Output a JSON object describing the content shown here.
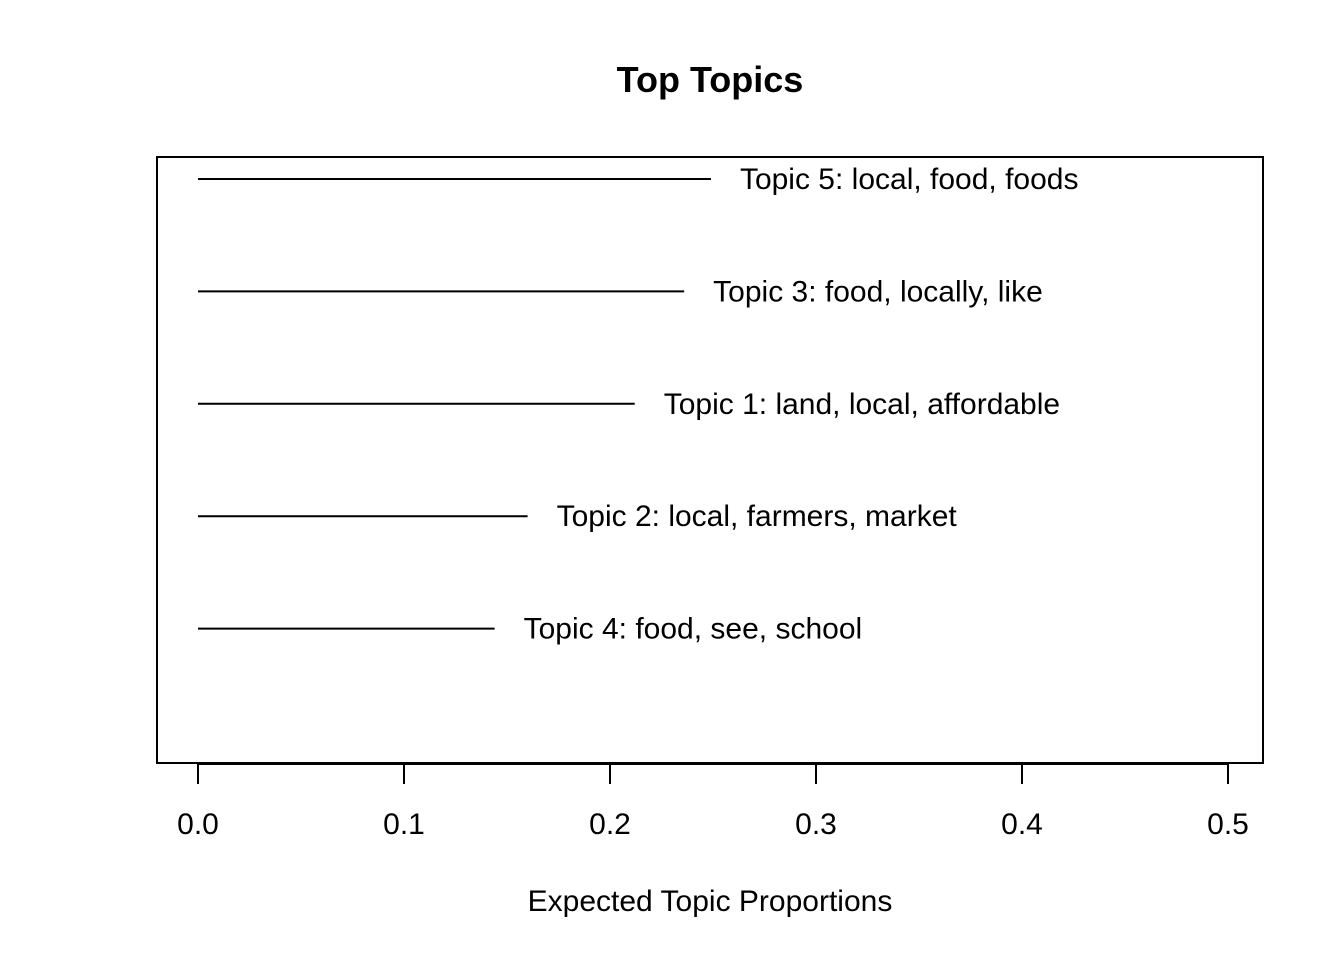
{
  "chart_data": {
    "type": "bar",
    "title": "Top Topics",
    "xlabel": "Expected Topic Proportions",
    "ylabel": "",
    "xlim": [
      0.0,
      0.5
    ],
    "xticks": [
      0.0,
      0.1,
      0.2,
      0.3,
      0.4,
      0.5
    ],
    "xtick_labels": [
      "0.0",
      "0.1",
      "0.2",
      "0.3",
      "0.4",
      "0.5"
    ],
    "orientation": "horizontal",
    "categories": [
      "Topic 5: local, food, foods",
      "Topic 3: food, locally, like",
      "Topic 1: land, local, affordable",
      "Topic 2: local, farmers, market",
      "Topic 4: food, see, school"
    ],
    "values": [
      0.249,
      0.236,
      0.212,
      0.16,
      0.144
    ],
    "grid": false,
    "legend": "none",
    "line_color": "#000000"
  }
}
